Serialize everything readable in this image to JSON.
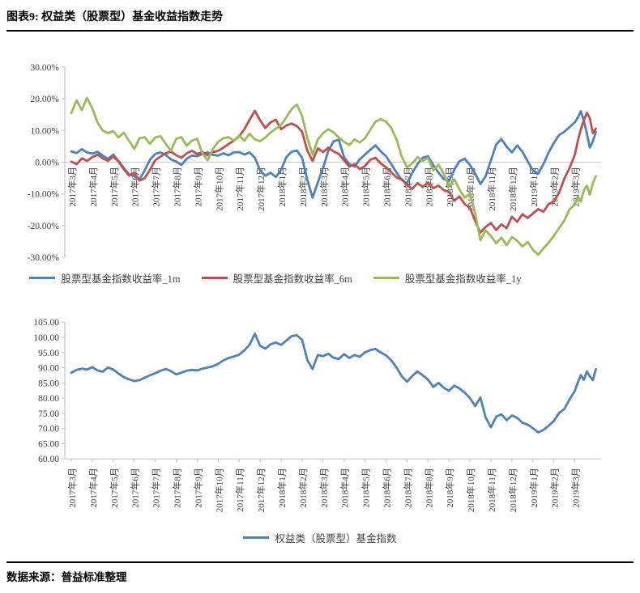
{
  "title": "图表9: 权益类（股票型）基金收益指数走势",
  "footer": {
    "source_label": "数据来源：普益标准整理"
  },
  "colors": {
    "blue": "#4F81BD",
    "red": "#C0504D",
    "green": "#9BBA59",
    "axis_line": "#BFBFBF",
    "zero_line": "#C9C9C9",
    "axis_text": "#404040"
  },
  "chart_data": [
    {
      "type": "line",
      "name": "equity-fund-returns",
      "ylabel": "",
      "ylim": [
        -30,
        30
      ],
      "grid": "zero-line-only",
      "legend_position": "bottom",
      "y_ticks": [
        "30.00%",
        "20.00%",
        "10.00%",
        "0.00%",
        "-10.00%",
        "-20.00%",
        "-30.00%"
      ],
      "x_labels": [
        "2017年3月",
        "2017年4月",
        "2017年5月",
        "2017年6月",
        "2017年7月",
        "2017年8月",
        "2017年9月",
        "2017年10月",
        "2017年11月",
        "2017年12月",
        "2018年1月",
        "2018年2月",
        "2018年3月",
        "2018年4月",
        "2018年5月",
        "2018年6月",
        "2018年7月",
        "2018年8月",
        "2018年9月",
        "2018年10月",
        "2018年11月",
        "2018年12月",
        "2019年1月",
        "2019年2月",
        "2019年3月"
      ],
      "series": [
        {
          "name": "股票型基金指数收益率_1m",
          "color": "#4F81BD",
          "values": [
            3.4,
            2.9,
            4.1,
            3.1,
            2.7,
            3.3,
            2.1,
            1.1,
            2.4,
            0.4,
            -1.8,
            -3.8,
            -4.4,
            -5.4,
            -2.6,
            0.8,
            2.6,
            3.1,
            2.3,
            0.9,
            0.2,
            -0.9,
            1.1,
            2.1,
            1.9,
            2.6,
            3.1,
            2.3,
            2.1,
            2.8,
            2.2,
            3.1,
            3.2,
            2.4,
            3.1,
            1.4,
            -2.6,
            -4.3,
            -3.3,
            -4.7,
            -2.4,
            1.6,
            3.3,
            3.7,
            1.4,
            -5.6,
            -11.2,
            -6.4,
            -1.8,
            3.6,
            6.6,
            7.1,
            1.6,
            -0.6,
            -1.4,
            0.9,
            2.4,
            3.9,
            5.3,
            3.4,
            1.9,
            -0.6,
            -3.3,
            -5.6,
            -6.6,
            -3.4,
            -0.6,
            1.4,
            1.9,
            -0.9,
            -3.3,
            -5.3,
            -5.9,
            -2.4,
            0.3,
            1.1,
            -0.9,
            -3.6,
            -6.9,
            -4.4,
            0.6,
            5.6,
            7.3,
            4.9,
            3.1,
            5.3,
            3.3,
            0.3,
            -2.6,
            -3.6,
            -0.6,
            3.1,
            6.1,
            8.6,
            9.6,
            11.1,
            12.6,
            14.1,
            16.1,
            13.1,
            9.1,
            4.6,
            6.6,
            9.6
          ]
        },
        {
          "name": "股票型基金指数收益率_6m",
          "color": "#C0504D",
          "values": [
            0.2,
            -0.6,
            1.2,
            0.4,
            1.6,
            2.4,
            1.2,
            0.4,
            1.8,
            0.2,
            -2.2,
            -4.2,
            -3.4,
            -5.8,
            -5.0,
            -2.4,
            0.6,
            1.8,
            2.8,
            3.4,
            2.2,
            1.4,
            2.8,
            3.6,
            2.6,
            3.2,
            2.2,
            3.2,
            3.6,
            4.6,
            5.8,
            6.8,
            8.2,
            10.4,
            13.4,
            16.2,
            13.2,
            10.8,
            12.6,
            13.4,
            10.4,
            11.6,
            12.2,
            11.4,
            9.6,
            3.6,
            0.4,
            4.4,
            3.2,
            4.6,
            3.4,
            2.6,
            0.6,
            -1.4,
            -0.6,
            -2.2,
            -1.2,
            0.8,
            1.4,
            -0.4,
            -1.6,
            -3.2,
            -4.8,
            -5.4,
            -7.2,
            -8.4,
            -6.6,
            -7.8,
            -6.4,
            -8.2,
            -7.4,
            -8.8,
            -9.4,
            -12.2,
            -10.8,
            -13.2,
            -14.4,
            -18.6,
            -22.2,
            -20.4,
            -19.2,
            -21.4,
            -19.6,
            -20.8,
            -17.2,
            -18.8,
            -16.4,
            -17.6,
            -16.2,
            -14.8,
            -15.6,
            -13.2,
            -12.4,
            -9.6,
            -5.2,
            -1.8,
            2.4,
            6.8,
            10.4,
            13.2,
            15.6,
            13.8,
            9.2,
            10.6
          ]
        },
        {
          "name": "股票型基金指数收益率_1y",
          "color": "#9BBA59",
          "values": [
            15.5,
            19.5,
            16.5,
            20.3,
            17.0,
            12.5,
            10.0,
            9.2,
            9.8,
            7.8,
            9.3,
            6.8,
            4.2,
            7.6,
            7.9,
            5.8,
            7.8,
            8.2,
            5.8,
            3.6,
            7.4,
            7.9,
            5.2,
            6.8,
            7.4,
            2.8,
            0.6,
            4.2,
            6.4,
            7.6,
            7.9,
            6.8,
            8.4,
            6.8,
            9.0,
            7.2,
            6.6,
            7.8,
            9.4,
            10.6,
            11.8,
            14.2,
            16.8,
            18.2,
            14.6,
            7.6,
            2.4,
            7.2,
            9.2,
            10.4,
            9.4,
            7.8,
            6.4,
            5.4,
            7.2,
            6.2,
            7.6,
            10.2,
            12.8,
            13.6,
            12.8,
            10.8,
            7.2,
            1.8,
            -1.6,
            -0.4,
            1.6,
            0.4,
            1.4,
            -2.6,
            -0.8,
            -3.6,
            -7.6,
            -5.4,
            -8.6,
            -11.2,
            -9.8,
            -16.2,
            -24.6,
            -21.6,
            -23.2,
            -25.6,
            -23.8,
            -26.2,
            -23.6,
            -24.8,
            -26.6,
            -25.2,
            -27.6,
            -29.2,
            -27.2,
            -25.4,
            -23.2,
            -20.8,
            -18.4,
            -14.8,
            -13.4,
            -10.8,
            -12.4,
            -8.8,
            -7.4,
            -10.2,
            -6.6,
            -4.4
          ]
        }
      ]
    },
    {
      "type": "line",
      "name": "equity-fund-index",
      "ylabel": "",
      "ylim": [
        60,
        105
      ],
      "grid": "off",
      "legend_position": "bottom",
      "y_ticks": [
        "105.00",
        "100.00",
        "95.00",
        "90.00",
        "85.00",
        "80.00",
        "75.00",
        "70.00",
        "65.00",
        "60.00"
      ],
      "x_labels": [
        "2017年3月",
        "2017年4月",
        "2017年5月",
        "2017年6月",
        "2017年7月",
        "2017年8月",
        "2017年9月",
        "2017年10月",
        "2017年11月",
        "2017年12月",
        "2018年1月",
        "2018年2月",
        "2018年3月",
        "2018年4月",
        "2018年5月",
        "2018年6月",
        "2018年7月",
        "2018年8月",
        "2018年9月",
        "2018年10月",
        "2018年11月",
        "2018年12月",
        "2019年1月",
        "2019年2月",
        "2019年3月"
      ],
      "series": [
        {
          "name": "权益类（股票型）基金指数",
          "color": "#4F81BD",
          "values": [
            88.3,
            89.3,
            89.7,
            89.4,
            90.2,
            89.1,
            88.7,
            90.1,
            89.4,
            88.1,
            86.9,
            86.2,
            85.6,
            85.9,
            86.7,
            87.5,
            88.2,
            89.0,
            89.6,
            88.9,
            87.8,
            88.4,
            89.0,
            89.3,
            89.1,
            89.7,
            90.1,
            90.5,
            91.3,
            92.4,
            93.2,
            93.7,
            94.3,
            95.7,
            97.6,
            101.2,
            97.2,
            96.3,
            97.7,
            98.3,
            97.5,
            99.0,
            100.4,
            100.7,
            99.2,
            92.5,
            89.6,
            94.2,
            93.8,
            94.6,
            93.3,
            92.9,
            94.5,
            93.2,
            94.2,
            93.6,
            95.1,
            95.8,
            96.2,
            95.0,
            94.1,
            92.4,
            90.1,
            87.2,
            85.4,
            87.3,
            88.8,
            87.5,
            86.1,
            83.7,
            85.0,
            83.4,
            82.4,
            84.1,
            83.2,
            81.8,
            80.0,
            77.4,
            80.2,
            73.6,
            70.4,
            73.9,
            74.7,
            72.7,
            74.3,
            73.5,
            71.9,
            71.3,
            70.1,
            68.7,
            69.5,
            70.9,
            72.5,
            75.1,
            76.4,
            79.6,
            82.4,
            85.2,
            87.6,
            86.0,
            88.8,
            87.2,
            85.9,
            89.5
          ]
        }
      ]
    }
  ]
}
